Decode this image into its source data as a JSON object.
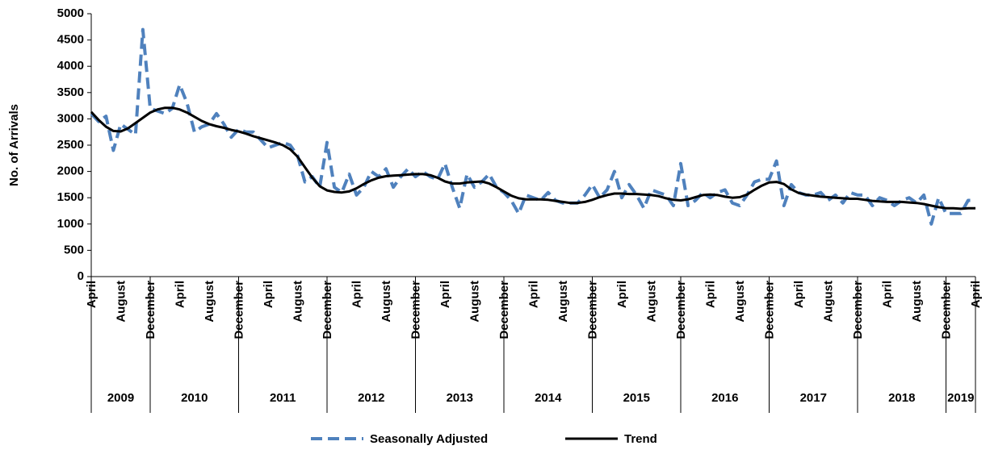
{
  "chart_data": {
    "type": "line",
    "ylabel": "No. of Arrivals",
    "categories": [
      "April",
      null,
      null,
      null,
      "August",
      null,
      null,
      null,
      "December",
      null,
      null,
      null,
      "April",
      null,
      null,
      null,
      "August",
      null,
      null,
      null,
      "December",
      null,
      null,
      null,
      "April",
      null,
      null,
      null,
      "August",
      null,
      null,
      null,
      "December",
      null,
      null,
      null,
      "April",
      null,
      null,
      null,
      "August",
      null,
      null,
      null,
      "December",
      null,
      null,
      null,
      "April",
      null,
      null,
      null,
      "August",
      null,
      null,
      null,
      "December",
      null,
      null,
      null,
      "April",
      null,
      null,
      null,
      "August",
      null,
      null,
      null,
      "December",
      null,
      null,
      null,
      "April",
      null,
      null,
      null,
      "August",
      null,
      null,
      null,
      "December",
      null,
      null,
      null,
      "April",
      null,
      null,
      null,
      "August",
      null,
      null,
      null,
      "December",
      null,
      null,
      null,
      "April",
      null,
      null,
      null,
      "August",
      null,
      null,
      null,
      "December",
      null,
      null,
      null,
      "April",
      null,
      null,
      null,
      "August",
      null,
      null,
      null,
      "December",
      null,
      null,
      null,
      "April"
    ],
    "years": [
      "2009",
      "2010",
      "2011",
      "2012",
      "2013",
      "2014",
      "2015",
      "2016",
      "2017",
      "2018",
      "2019"
    ],
    "series": [
      {
        "name": "Seasonally Adjusted",
        "color": "#4f81bd",
        "dashed": true,
        "values": [
          3100,
          2950,
          3050,
          2400,
          2900,
          2800,
          2700,
          4700,
          3200,
          3150,
          3100,
          3200,
          3650,
          3300,
          2750,
          2850,
          2900,
          3100,
          2900,
          2650,
          2800,
          2750,
          2750,
          2600,
          2450,
          2500,
          2550,
          2500,
          2300,
          1800,
          1900,
          1700,
          2550,
          1700,
          1600,
          1950,
          1550,
          1700,
          2000,
          1900,
          2050,
          1700,
          1900,
          2050,
          1900,
          2000,
          1900,
          1850,
          2150,
          1700,
          1300,
          1950,
          1700,
          1800,
          1950,
          1700,
          1600,
          1450,
          1200,
          1550,
          1500,
          1450,
          1600,
          1450,
          1400,
          1400,
          1400,
          1550,
          1750,
          1500,
          1650,
          2000,
          1500,
          1750,
          1550,
          1300,
          1650,
          1600,
          1550,
          1350,
          2150,
          1350,
          1450,
          1600,
          1500,
          1600,
          1650,
          1400,
          1350,
          1550,
          1800,
          1850,
          1850,
          2200,
          1350,
          1750,
          1600,
          1550,
          1550,
          1600,
          1450,
          1550,
          1400,
          1600,
          1550,
          1550,
          1350,
          1500,
          1450,
          1350,
          1450,
          1500,
          1400,
          1550,
          1000,
          1500,
          1200,
          1200,
          1200,
          1450,
          1450
        ]
      },
      {
        "name": "Trend",
        "color": "#000000",
        "dashed": false,
        "values": [
          3130,
          2980,
          2850,
          2770,
          2760,
          2820,
          2920,
          3020,
          3120,
          3180,
          3210,
          3210,
          3180,
          3120,
          3040,
          2960,
          2900,
          2860,
          2830,
          2790,
          2760,
          2720,
          2670,
          2630,
          2590,
          2550,
          2500,
          2420,
          2280,
          2080,
          1880,
          1720,
          1640,
          1610,
          1600,
          1620,
          1680,
          1760,
          1830,
          1880,
          1910,
          1920,
          1930,
          1940,
          1950,
          1950,
          1930,
          1880,
          1810,
          1770,
          1770,
          1790,
          1800,
          1810,
          1770,
          1700,
          1620,
          1540,
          1490,
          1470,
          1470,
          1470,
          1460,
          1440,
          1420,
          1400,
          1400,
          1420,
          1460,
          1510,
          1550,
          1580,
          1580,
          1570,
          1570,
          1560,
          1550,
          1530,
          1490,
          1460,
          1450,
          1470,
          1510,
          1550,
          1560,
          1550,
          1520,
          1500,
          1510,
          1560,
          1650,
          1730,
          1790,
          1800,
          1760,
          1660,
          1590,
          1560,
          1540,
          1520,
          1510,
          1500,
          1490,
          1480,
          1480,
          1460,
          1440,
          1430,
          1420,
          1420,
          1420,
          1410,
          1400,
          1380,
          1350,
          1320,
          1300,
          1300,
          1290,
          1300,
          1300
        ]
      }
    ],
    "ylim": [
      0,
      5000
    ],
    "yticks": [
      0,
      500,
      1000,
      1500,
      2000,
      2500,
      3000,
      3500,
      4000,
      4500,
      5000
    ]
  }
}
